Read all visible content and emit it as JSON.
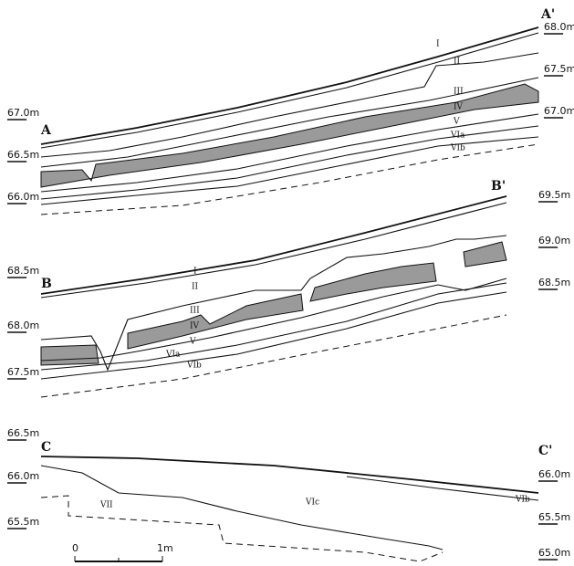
{
  "sections": [
    {
      "label": "A",
      "label_end": "A'",
      "left_elevations": [
        "67.0m",
        "66.5m",
        "66.0m"
      ],
      "right_elevations": [
        "68.0m",
        "67.5m",
        "67.0m"
      ],
      "layers": [
        "I",
        "II",
        "III",
        "IV",
        "V",
        "VIa",
        "VIb"
      ]
    },
    {
      "label": "B",
      "label_end": "B'",
      "left_elevations": [
        "68.5m",
        "68.0m",
        "67.5m"
      ],
      "right_elevations": [
        "69.5m",
        "69.0m",
        "68.5m"
      ],
      "layers": [
        "I",
        "II",
        "III",
        "IV",
        "V",
        "VIa",
        "VIb"
      ]
    },
    {
      "label": "C",
      "label_end": "C'",
      "left_elevations": [
        "66.5m",
        "66.0m",
        "65.5m"
      ],
      "right_elevations": [
        "66.0m",
        "65.5m",
        "65.0m"
      ],
      "layers": [
        "VII",
        "VIc",
        "VIb"
      ]
    }
  ],
  "scale_bar": {
    "start": "0",
    "end": "1m"
  }
}
